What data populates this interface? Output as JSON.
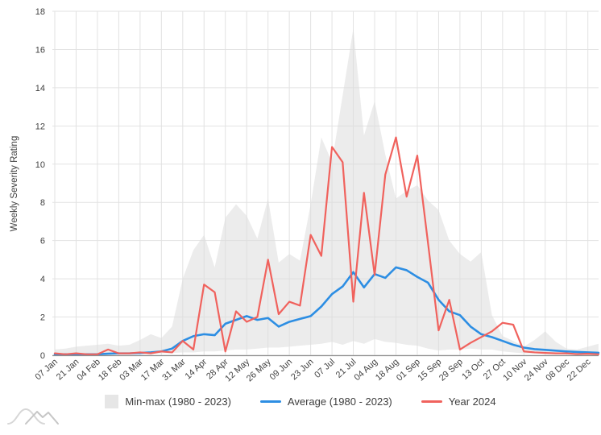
{
  "chart_data": {
    "type": "area+line",
    "title": "",
    "ylabel": "Weekly Severity Rating",
    "ylim": [
      0,
      18
    ],
    "yticks": [
      0,
      2,
      4,
      6,
      8,
      10,
      12,
      14,
      16,
      18
    ],
    "grid": true,
    "legend_position": "bottom",
    "x_tick_labels": [
      "07 Jan",
      "21 Jan",
      "04 Feb",
      "18 Feb",
      "03 Mar",
      "17 Mar",
      "31 Mar",
      "14 Apr",
      "28 Apr",
      "12 May",
      "26 May",
      "09 Jun",
      "23 Jun",
      "07 Jul",
      "21 Jul",
      "04 Aug",
      "18 Aug",
      "01 Sep",
      "15 Sep",
      "29 Sep",
      "13 Oct",
      "27 Oct",
      "10 Nov",
      "24 Nov",
      "08 Dec",
      "22 Dec"
    ],
    "weeks": [
      "07 Jan",
      "14 Jan",
      "21 Jan",
      "28 Jan",
      "04 Feb",
      "11 Feb",
      "18 Feb",
      "25 Feb",
      "03 Mar",
      "10 Mar",
      "17 Mar",
      "24 Mar",
      "31 Mar",
      "07 Apr",
      "14 Apr",
      "21 Apr",
      "28 Apr",
      "05 May",
      "12 May",
      "19 May",
      "26 May",
      "02 Jun",
      "09 Jun",
      "16 Jun",
      "23 Jun",
      "30 Jun",
      "07 Jul",
      "14 Jul",
      "21 Jul",
      "28 Jul",
      "04 Aug",
      "11 Aug",
      "18 Aug",
      "25 Aug",
      "01 Sep",
      "08 Sep",
      "15 Sep",
      "22 Sep",
      "29 Sep",
      "06 Oct",
      "13 Oct",
      "20 Oct",
      "27 Oct",
      "03 Nov",
      "10 Nov",
      "17 Nov",
      "24 Nov",
      "01 Dec",
      "08 Dec",
      "15 Dec",
      "22 Dec",
      "29 Dec"
    ],
    "series": [
      {
        "name": "Min-max (1980 - 2023)",
        "type": "band",
        "color": "#e6e6e6",
        "max": [
          0.3,
          0.35,
          0.45,
          0.5,
          0.55,
          0.6,
          0.5,
          0.55,
          0.8,
          1.1,
          0.9,
          1.5,
          4.0,
          5.5,
          6.3,
          4.6,
          7.2,
          7.9,
          7.3,
          6.1,
          8.2,
          4.85,
          5.3,
          4.95,
          7.9,
          11.4,
          10.1,
          13.6,
          17.1,
          11.5,
          13.3,
          10.5,
          8.2,
          8.6,
          8.9,
          8.1,
          7.6,
          6.0,
          5.3,
          4.9,
          5.4,
          2.1,
          1.0,
          0.75,
          0.45,
          0.8,
          1.25,
          0.7,
          0.35,
          0.3,
          0.45,
          0.6
        ],
        "min": [
          0.02,
          0.02,
          0.03,
          0.03,
          0.03,
          0.05,
          0.05,
          0.05,
          0.08,
          0.08,
          0.1,
          0.12,
          0.15,
          0.15,
          0.2,
          0.2,
          0.25,
          0.3,
          0.3,
          0.35,
          0.4,
          0.4,
          0.45,
          0.5,
          0.55,
          0.6,
          0.7,
          0.55,
          0.75,
          0.6,
          0.85,
          0.7,
          0.65,
          0.55,
          0.5,
          0.35,
          0.25,
          0.3,
          0.3,
          0.35,
          0.3,
          0.3,
          0.2,
          0.15,
          0.1,
          0.1,
          0.1,
          0.08,
          0.05,
          0.05,
          0.05,
          0.05
        ]
      },
      {
        "name": "Average (1980 - 2023)",
        "type": "line",
        "color": "#2d8ee3",
        "values": [
          0.05,
          0.05,
          0.05,
          0.05,
          0.05,
          0.08,
          0.1,
          0.1,
          0.12,
          0.15,
          0.2,
          0.35,
          0.75,
          1.0,
          1.1,
          1.05,
          1.65,
          1.85,
          2.05,
          1.85,
          1.95,
          1.5,
          1.75,
          1.9,
          2.05,
          2.55,
          3.2,
          3.6,
          4.35,
          3.55,
          4.25,
          4.05,
          4.6,
          4.45,
          4.1,
          3.8,
          2.9,
          2.3,
          2.1,
          1.5,
          1.1,
          0.95,
          0.75,
          0.55,
          0.4,
          0.32,
          0.28,
          0.24,
          0.2,
          0.17,
          0.15,
          0.13
        ]
      },
      {
        "name": "Year 2024",
        "type": "line",
        "color": "#f0625d",
        "values": [
          0.1,
          0.05,
          0.1,
          0.05,
          0.05,
          0.3,
          0.1,
          0.1,
          0.15,
          0.1,
          0.2,
          0.15,
          0.75,
          0.3,
          3.7,
          3.3,
          0.2,
          2.3,
          1.75,
          2.0,
          5.0,
          2.15,
          2.8,
          2.6,
          6.3,
          5.2,
          10.9,
          10.1,
          2.8,
          8.5,
          4.2,
          9.45,
          11.4,
          8.3,
          10.45,
          5.9,
          1.3,
          2.9,
          0.3,
          0.65,
          0.95,
          1.25,
          1.7,
          1.6,
          0.2,
          0.15,
          0.12,
          0.1,
          0.1,
          0.06,
          0.08,
          0.05
        ]
      }
    ],
    "colors": {
      "grid": "#e2e2e2",
      "axis_line": "#8f8f8f",
      "axis_text": "#424242",
      "band_fill_opacity": 0.55
    }
  },
  "legend": {
    "minmax_label": "Min-max (1980 - 2023)",
    "average_label": "Average (1980 - 2023)",
    "year_label": "Year 2024"
  }
}
